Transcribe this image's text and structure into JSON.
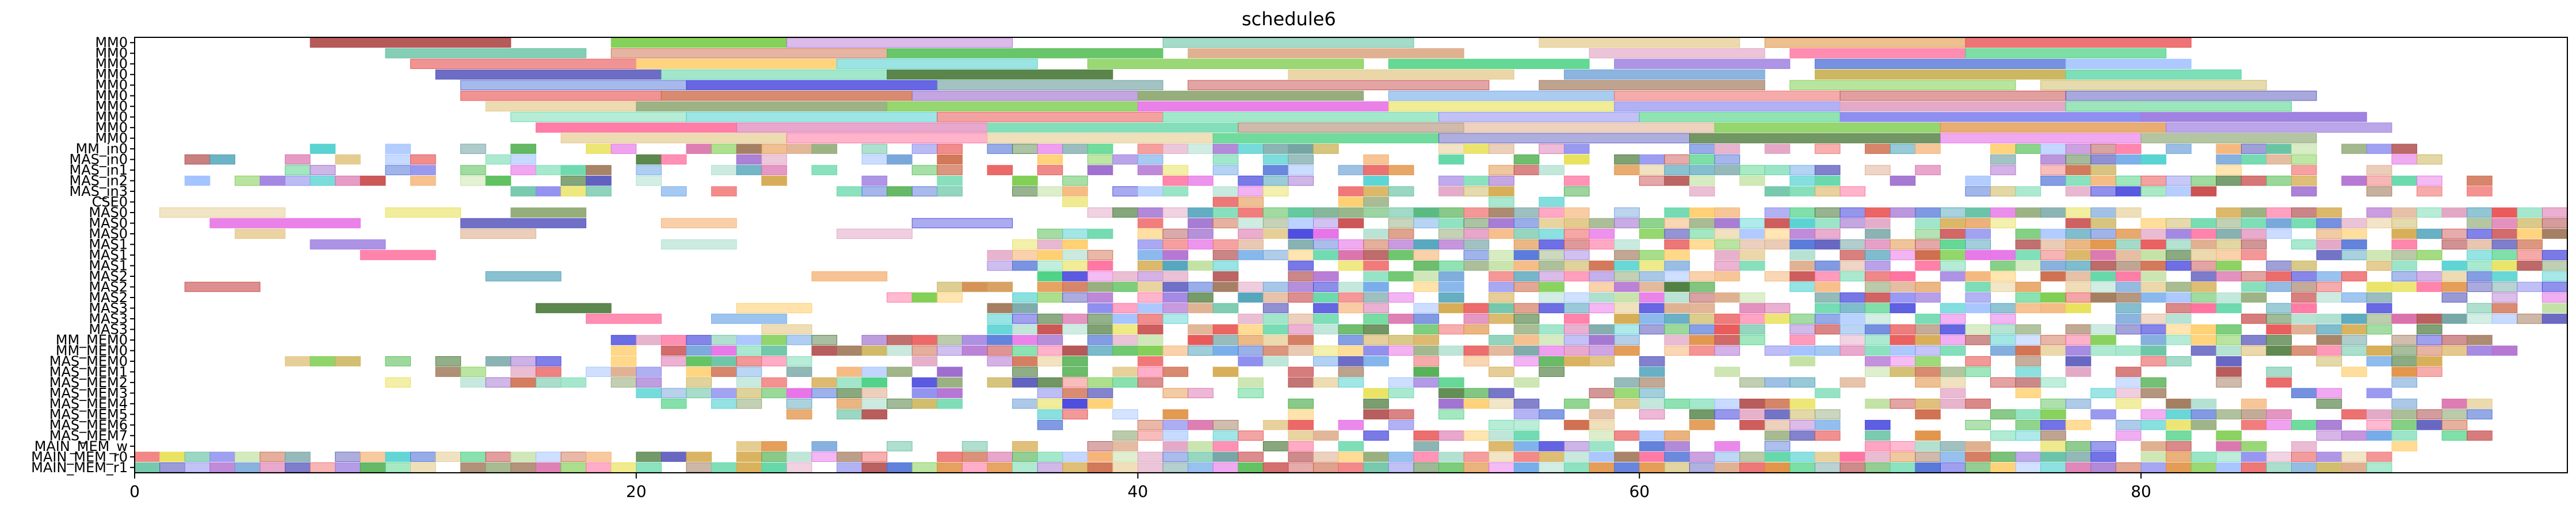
{
  "chart_data": {
    "type": "gantt",
    "title": "schedule6",
    "xlabel": "",
    "ylabel": "",
    "xlim": [
      0,
      97
    ],
    "xticks": [
      0,
      20,
      40,
      60,
      80
    ],
    "grid": false,
    "rows": [
      "MM0",
      "MM0",
      "MM0",
      "MM0",
      "MM0",
      "MM0",
      "MM0",
      "MM0",
      "MM0",
      "MM0",
      "MM_in0",
      "MAS_in0",
      "MAS_in1",
      "MAS_in2",
      "MAS_in3",
      "CSE0",
      "MAS0",
      "MAS0",
      "MAS0",
      "MAS1",
      "MAS1",
      "MAS1",
      "MAS2",
      "MAS2",
      "MAS2",
      "MAS3",
      "MAS3",
      "MAS3",
      "MM_MEM0",
      "MM_MEM0",
      "MAS_MEM0",
      "MAS_MEM1",
      "MAS_MEM2",
      "MAS_MEM3",
      "MAS_MEM4",
      "MAS_MEM5",
      "MAS_MEM6",
      "MAS_MEM7",
      "MAIN_MEM_w",
      "MAIN_MEM_r0",
      "MAIN_MEM_r1"
    ],
    "long_rows": [
      {
        "row": 0,
        "tasks": [
          [
            7,
            15
          ],
          [
            19,
            26
          ],
          [
            26,
            35
          ],
          [
            41,
            51
          ],
          [
            56,
            64
          ],
          [
            65,
            73
          ],
          [
            73,
            82
          ]
        ]
      },
      {
        "row": 1,
        "tasks": [
          [
            10,
            18
          ],
          [
            19,
            30
          ],
          [
            30,
            41
          ],
          [
            42,
            53
          ],
          [
            58,
            65
          ],
          [
            66,
            73
          ],
          [
            73,
            81
          ]
        ]
      },
      {
        "row": 2,
        "tasks": [
          [
            11,
            20
          ],
          [
            20,
            28
          ],
          [
            28,
            36
          ],
          [
            38,
            49
          ],
          [
            50,
            58
          ],
          [
            59,
            66
          ],
          [
            67,
            77
          ],
          [
            77,
            82
          ]
        ]
      },
      {
        "row": 3,
        "tasks": [
          [
            12,
            21
          ],
          [
            21,
            30
          ],
          [
            30,
            39
          ],
          [
            46,
            55
          ],
          [
            57,
            65
          ],
          [
            67,
            77
          ],
          [
            77,
            84
          ]
        ]
      },
      {
        "row": 4,
        "tasks": [
          [
            13,
            22
          ],
          [
            22,
            32
          ],
          [
            32,
            41
          ],
          [
            42,
            54
          ],
          [
            56,
            65
          ],
          [
            66,
            75
          ],
          [
            76,
            85
          ]
        ]
      },
      {
        "row": 5,
        "tasks": [
          [
            13,
            21
          ],
          [
            21,
            31
          ],
          [
            31,
            40
          ],
          [
            40,
            49
          ],
          [
            50,
            59
          ],
          [
            59,
            68
          ],
          [
            68,
            77
          ],
          [
            77,
            87
          ]
        ]
      },
      {
        "row": 6,
        "tasks": [
          [
            14,
            20
          ],
          [
            20,
            30
          ],
          [
            30,
            40
          ],
          [
            40,
            50
          ],
          [
            50,
            59
          ],
          [
            59,
            68
          ],
          [
            68,
            77
          ],
          [
            77,
            86
          ]
        ]
      },
      {
        "row": 7,
        "tasks": [
          [
            15,
            22
          ],
          [
            22,
            32
          ],
          [
            32,
            41
          ],
          [
            41,
            52
          ],
          [
            52,
            60
          ],
          [
            60,
            68
          ],
          [
            68,
            80
          ],
          [
            80,
            89
          ]
        ]
      },
      {
        "row": 8,
        "tasks": [
          [
            16,
            24
          ],
          [
            24,
            34
          ],
          [
            34,
            44
          ],
          [
            44,
            53
          ],
          [
            53,
            63
          ],
          [
            63,
            72
          ],
          [
            72,
            81
          ],
          [
            81,
            90
          ]
        ]
      },
      {
        "row": 9,
        "tasks": [
          [
            17,
            26
          ],
          [
            26,
            34
          ],
          [
            34,
            43
          ],
          [
            43,
            52
          ],
          [
            52,
            62
          ],
          [
            62,
            72
          ],
          [
            72,
            80
          ],
          [
            80,
            87
          ]
        ]
      },
      {
        "row": 16,
        "tasks": [
          [
            1,
            6
          ],
          [
            10,
            13
          ],
          [
            15,
            18
          ],
          [
            46,
            52
          ]
        ]
      },
      {
        "row": 17,
        "tasks": [
          [
            3,
            9
          ],
          [
            13,
            18
          ],
          [
            21,
            24
          ],
          [
            31,
            35
          ]
        ]
      },
      {
        "row": 18,
        "tasks": [
          [
            4,
            6
          ],
          [
            13,
            16
          ],
          [
            28,
            31
          ]
        ]
      },
      {
        "row": 19,
        "tasks": [
          [
            7,
            10
          ],
          [
            21,
            24
          ]
        ]
      },
      {
        "row": 20,
        "tasks": [
          [
            9,
            12
          ]
        ]
      },
      {
        "row": 22,
        "tasks": [
          [
            14,
            17
          ],
          [
            27,
            30
          ]
        ]
      },
      {
        "row": 23,
        "tasks": [
          [
            2,
            5
          ],
          [
            32,
            35
          ]
        ]
      },
      {
        "row": 25,
        "tasks": [
          [
            16,
            19
          ],
          [
            24,
            27
          ]
        ]
      },
      {
        "row": 26,
        "tasks": [
          [
            18,
            21
          ],
          [
            23,
            26
          ]
        ]
      },
      {
        "row": 27,
        "tasks": [
          [
            25,
            27
          ]
        ]
      }
    ],
    "dense_rows": [
      {
        "row": 10,
        "start": 6,
        "end": 91,
        "density": 0.55
      },
      {
        "row": 11,
        "start": 2,
        "end": 92,
        "density": 0.55
      },
      {
        "row": 12,
        "start": 6,
        "end": 93,
        "density": 0.6
      },
      {
        "row": 13,
        "start": 1,
        "end": 94,
        "density": 0.6
      },
      {
        "row": 14,
        "start": 15,
        "end": 94,
        "density": 0.6
      },
      {
        "row": 15,
        "start": 34,
        "end": 60,
        "density": 0.35
      },
      {
        "row": 16,
        "start": 38,
        "end": 97,
        "density": 0.85
      },
      {
        "row": 17,
        "start": 38,
        "end": 97,
        "density": 0.85
      },
      {
        "row": 18,
        "start": 36,
        "end": 97,
        "density": 0.85
      },
      {
        "row": 19,
        "start": 35,
        "end": 97,
        "density": 0.8
      },
      {
        "row": 20,
        "start": 34,
        "end": 97,
        "density": 0.85
      },
      {
        "row": 21,
        "start": 34,
        "end": 97,
        "density": 0.85
      },
      {
        "row": 22,
        "start": 35,
        "end": 97,
        "density": 0.8
      },
      {
        "row": 23,
        "start": 33,
        "end": 97,
        "density": 0.85
      },
      {
        "row": 24,
        "start": 30,
        "end": 97,
        "density": 0.85
      },
      {
        "row": 25,
        "start": 34,
        "end": 97,
        "density": 0.8
      },
      {
        "row": 26,
        "start": 33,
        "end": 97,
        "density": 0.85
      },
      {
        "row": 27,
        "start": 34,
        "end": 92,
        "density": 0.8
      },
      {
        "row": 28,
        "start": 19,
        "end": 95,
        "density": 0.9
      },
      {
        "row": 29,
        "start": 19,
        "end": 95,
        "density": 0.9
      },
      {
        "row": 30,
        "start": 6,
        "end": 92,
        "density": 0.55
      },
      {
        "row": 31,
        "start": 6,
        "end": 92,
        "density": 0.5
      },
      {
        "row": 32,
        "start": 9,
        "end": 93,
        "density": 0.45
      },
      {
        "row": 33,
        "start": 18,
        "end": 94,
        "density": 0.55
      },
      {
        "row": 34,
        "start": 21,
        "end": 95,
        "density": 0.55
      },
      {
        "row": 35,
        "start": 26,
        "end": 94,
        "density": 0.55
      },
      {
        "row": 36,
        "start": 36,
        "end": 94,
        "density": 0.55
      },
      {
        "row": 37,
        "start": 36,
        "end": 94,
        "density": 0.55
      },
      {
        "row": 38,
        "start": 21,
        "end": 94,
        "density": 0.5
      },
      {
        "row": 39,
        "start": 0,
        "end": 90,
        "density": 0.95
      },
      {
        "row": 40,
        "start": 0,
        "end": 90,
        "density": 0.95
      }
    ],
    "palette": [
      "#4b6fd6",
      "#5fd6a6",
      "#6fa8e8",
      "#4444dd",
      "#f4b070",
      "#b04a4a",
      "#7acc4a",
      "#c8b050",
      "#46aa46",
      "#6b9fd6",
      "#c84a4a",
      "#e66ee6",
      "#d4a84a",
      "#cc6644",
      "#9b7bdf",
      "#49a0b8",
      "#e85050",
      "#7bdcb5",
      "#d86aa8",
      "#e8e054",
      "#59bf59",
      "#a0785a",
      "#8fa874",
      "#f07070",
      "#60c0a0",
      "#b06ed0",
      "#50d0d0",
      "#e0a0c0",
      "#4a7a3a",
      "#8888ee",
      "#c0e0a0",
      "#e08e3e",
      "#ff6b9b",
      "#6ea0a0",
      "#ffcc66",
      "#46d080",
      "#ddaa88",
      "#a0c0ff",
      "#9966cc",
      "#e3c888",
      "#aaddcc",
      "#5555bb"
    ]
  }
}
